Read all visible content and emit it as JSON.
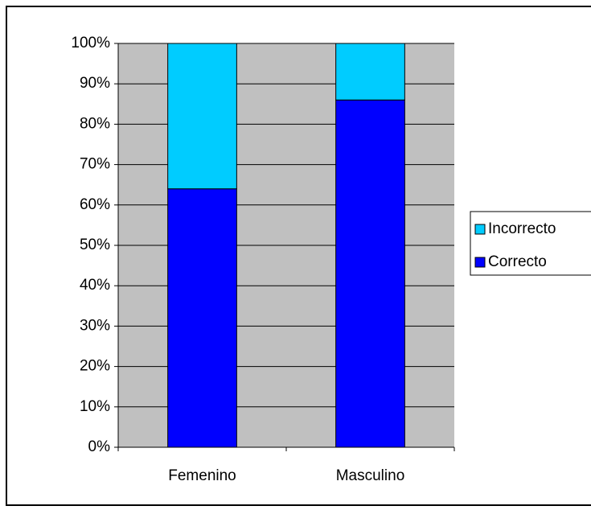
{
  "chart_data": {
    "type": "stacked_bar",
    "categories": [
      "Femenino",
      "Masculino"
    ],
    "series": [
      {
        "name": "Correcto",
        "color": "#0000ff",
        "values": [
          64,
          86
        ]
      },
      {
        "name": "Incorrecto",
        "color": "#00ccff",
        "values": [
          36,
          14
        ]
      }
    ],
    "ylim": [
      0,
      100
    ],
    "yticks": [
      {
        "value": 0,
        "label": "0%"
      },
      {
        "value": 10,
        "label": "10%"
      },
      {
        "value": 20,
        "label": "20%"
      },
      {
        "value": 30,
        "label": "30%"
      },
      {
        "value": 40,
        "label": "40%"
      },
      {
        "value": 50,
        "label": "50%"
      },
      {
        "value": 60,
        "label": "60%"
      },
      {
        "value": 70,
        "label": "70%"
      },
      {
        "value": 80,
        "label": "80%"
      },
      {
        "value": 90,
        "label": "90%"
      },
      {
        "value": 100,
        "label": "100%"
      }
    ],
    "grid": true,
    "plot_background": "#c0c0c0",
    "legend": "right"
  }
}
